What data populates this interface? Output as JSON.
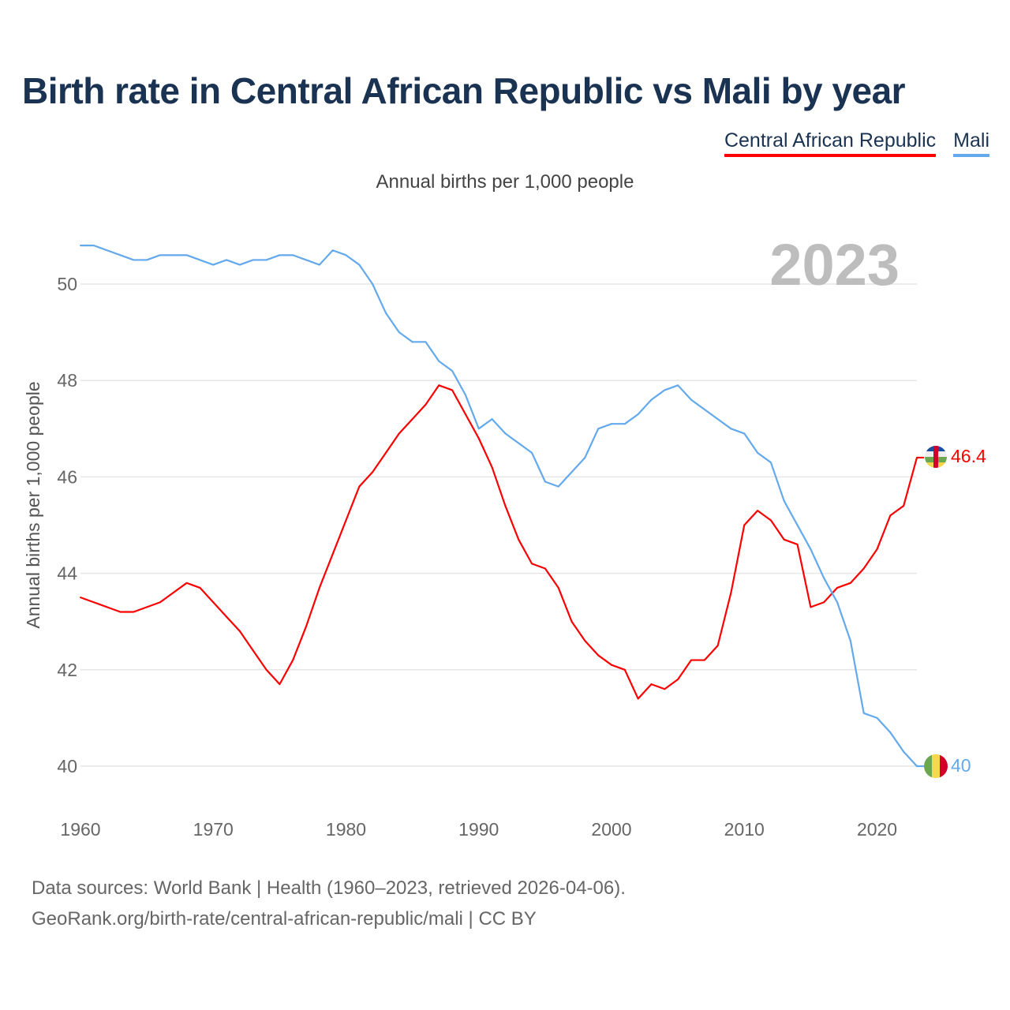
{
  "title": "Birth rate in Central African Republic vs Mali by year",
  "legend": [
    {
      "label": "Central African Republic",
      "color": "#ff0000"
    },
    {
      "label": "Mali",
      "color": "#63a9ec"
    }
  ],
  "subtitle": "Annual births per 1,000 people",
  "year_label": "2023",
  "footer": {
    "line1": "Data sources: World Bank | Health (1960–2023, retrieved 2026-04-06).",
    "line2": "GeoRank.org/birth-rate/central-african-republic/mali | CC BY"
  },
  "chart_data": {
    "type": "line",
    "title": "Birth rate in Central African Republic vs Mali by year",
    "xlabel": "",
    "ylabel": "Annual births per 1,000 people",
    "xlim": [
      1960,
      2023
    ],
    "ylim": [
      40,
      50
    ],
    "grid": true,
    "legend_position": "top-right",
    "x_ticks": [
      "1960",
      "1970",
      "1980",
      "1990",
      "2000",
      "2010",
      "2020"
    ],
    "y_ticks": [
      "40",
      "42",
      "44",
      "46",
      "48",
      "50"
    ],
    "x": [
      1960,
      1961,
      1962,
      1963,
      1964,
      1965,
      1966,
      1967,
      1968,
      1969,
      1970,
      1971,
      1972,
      1973,
      1974,
      1975,
      1976,
      1977,
      1978,
      1979,
      1980,
      1981,
      1982,
      1983,
      1984,
      1985,
      1986,
      1987,
      1988,
      1989,
      1990,
      1991,
      1992,
      1993,
      1994,
      1995,
      1996,
      1997,
      1998,
      1999,
      2000,
      2001,
      2002,
      2003,
      2004,
      2005,
      2006,
      2007,
      2008,
      2009,
      2010,
      2011,
      2012,
      2013,
      2014,
      2015,
      2016,
      2017,
      2018,
      2019,
      2020,
      2021,
      2022,
      2023
    ],
    "series": [
      {
        "name": "Central African Republic",
        "color": "#ff0000",
        "end_label": "46.4",
        "values": [
          43.5,
          43.4,
          43.3,
          43.2,
          43.2,
          43.3,
          43.4,
          43.6,
          43.8,
          43.7,
          43.4,
          43.1,
          42.8,
          42.4,
          42.0,
          41.7,
          42.2,
          42.9,
          43.7,
          44.4,
          45.1,
          45.8,
          46.1,
          46.5,
          46.9,
          47.2,
          47.5,
          47.9,
          47.8,
          47.3,
          46.8,
          46.2,
          45.4,
          44.7,
          44.2,
          44.1,
          43.7,
          43.0,
          42.6,
          42.3,
          42.1,
          42.0,
          41.4,
          41.7,
          41.6,
          41.8,
          42.2,
          42.2,
          42.5,
          43.6,
          45.0,
          45.3,
          45.1,
          44.7,
          44.6,
          43.3,
          43.4,
          43.7,
          43.8,
          44.1,
          44.5,
          45.2,
          45.4,
          46.4
        ]
      },
      {
        "name": "Mali",
        "color": "#63a9ec",
        "end_label": "40",
        "values": [
          50.8,
          50.8,
          50.7,
          50.6,
          50.5,
          50.5,
          50.6,
          50.6,
          50.6,
          50.5,
          50.4,
          50.5,
          50.4,
          50.5,
          50.5,
          50.6,
          50.6,
          50.5,
          50.4,
          50.7,
          50.6,
          50.4,
          50.0,
          49.4,
          49.0,
          48.8,
          48.8,
          48.4,
          48.2,
          47.7,
          47.0,
          47.2,
          46.9,
          46.7,
          46.5,
          45.9,
          45.8,
          46.1,
          46.4,
          47.0,
          47.1,
          47.1,
          47.3,
          47.6,
          47.8,
          47.9,
          47.6,
          47.4,
          47.2,
          47.0,
          46.9,
          46.5,
          46.3,
          45.5,
          45.0,
          44.5,
          43.9,
          43.4,
          42.6,
          41.1,
          41.0,
          40.7,
          40.3,
          40.0
        ]
      }
    ]
  }
}
